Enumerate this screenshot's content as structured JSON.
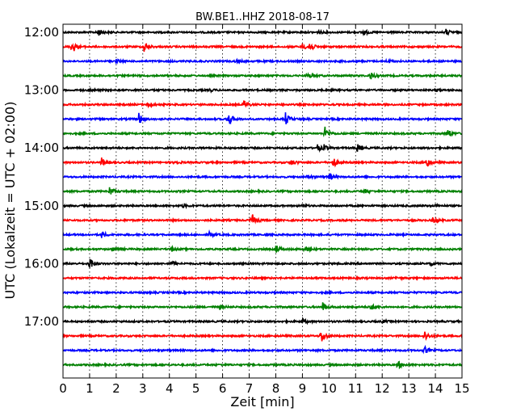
{
  "chart_data": {
    "type": "line",
    "title": "BW.BE1..HHZ 2018-08-17",
    "xlabel": "Zeit  [min]",
    "ylabel": "UTC (Lokalzeit = UTC + 02:00)",
    "xlim": [
      0,
      15
    ],
    "x_ticks": [
      "0",
      "1",
      "2",
      "3",
      "4",
      "5",
      "6",
      "7",
      "8",
      "9",
      "10",
      "11",
      "12",
      "13",
      "14",
      "15"
    ],
    "y_tick_labels": [
      "12:00",
      "13:00",
      "14:00",
      "15:00",
      "16:00",
      "17:00"
    ],
    "grid": "vertical dotted",
    "colors": [
      "#000000",
      "#ff0000",
      "#0000ff",
      "#008000"
    ],
    "traces": [
      {
        "label": "12:00",
        "events": [
          [
            1.3,
            0.6
          ],
          [
            11.3,
            0.4
          ],
          [
            14.4,
            0.4
          ],
          [
            9.6,
            0.2
          ]
        ]
      },
      {
        "label": "12:15",
        "events": [
          [
            0.35,
            0.9
          ],
          [
            3.05,
            0.8
          ],
          [
            9.25,
            0.8
          ],
          [
            9.0,
            0.4
          ]
        ]
      },
      {
        "label": "12:30",
        "events": [
          [
            2.0,
            0.2
          ],
          [
            6.5,
            0.2
          ],
          [
            12.2,
            0.2
          ]
        ]
      },
      {
        "label": "12:45",
        "events": [
          [
            9.2,
            0.4
          ],
          [
            11.55,
            0.6
          ]
        ]
      },
      {
        "label": "13:00",
        "events": [
          [
            1.0,
            0.2
          ],
          [
            5.5,
            0.2
          ],
          [
            14.0,
            0.2
          ]
        ]
      },
      {
        "label": "13:15",
        "events": [
          [
            3.2,
            0.4
          ],
          [
            6.8,
            0.6
          ]
        ]
      },
      {
        "label": "13:30",
        "events": [
          [
            2.85,
            0.8
          ],
          [
            6.2,
            1.0
          ],
          [
            8.35,
            1.0
          ]
        ]
      },
      {
        "label": "13:45",
        "events": [
          [
            9.85,
            0.9
          ],
          [
            14.45,
            0.6
          ]
        ]
      },
      {
        "label": "14:00",
        "events": [
          [
            9.55,
            0.5
          ],
          [
            9.8,
            0.4
          ],
          [
            11.05,
            0.6
          ]
        ]
      },
      {
        "label": "14:15",
        "events": [
          [
            1.45,
            0.6
          ],
          [
            4.2,
            0.3
          ],
          [
            8.55,
            0.5
          ],
          [
            10.15,
            0.8
          ],
          [
            13.65,
            0.9
          ]
        ]
      },
      {
        "label": "14:30",
        "events": [
          [
            9.2,
            0.3
          ],
          [
            10.0,
            0.5
          ]
        ]
      },
      {
        "label": "14:45",
        "events": [
          [
            1.75,
            0.6
          ],
          [
            11.3,
            0.3
          ]
        ]
      },
      {
        "label": "15:00",
        "events": [
          [
            4.5,
            0.2
          ],
          [
            9.0,
            0.2
          ],
          [
            14.0,
            0.2
          ]
        ]
      },
      {
        "label": "15:15",
        "events": [
          [
            7.1,
            0.9
          ],
          [
            13.9,
            0.4
          ]
        ]
      },
      {
        "label": "15:30",
        "events": [
          [
            1.45,
            0.5
          ],
          [
            5.5,
            0.3
          ]
        ]
      },
      {
        "label": "15:45",
        "events": [
          [
            1.9,
            0.4
          ],
          [
            4.1,
            0.3
          ],
          [
            8.0,
            0.6
          ],
          [
            9.1,
            0.4
          ]
        ]
      },
      {
        "label": "16:00",
        "events": [
          [
            1.0,
            1.0
          ],
          [
            4.1,
            0.3
          ],
          [
            13.8,
            0.3
          ]
        ]
      },
      {
        "label": "16:15",
        "events": [
          [
            12.5,
            0.2
          ]
        ]
      },
      {
        "label": "16:30",
        "events": []
      },
      {
        "label": "16:45",
        "events": [
          [
            5.9,
            0.3
          ],
          [
            9.75,
            0.7
          ],
          [
            11.55,
            0.5
          ]
        ]
      },
      {
        "label": "17:00",
        "events": [
          [
            9.0,
            0.4
          ],
          [
            12.0,
            0.2
          ]
        ]
      },
      {
        "label": "17:15",
        "events": [
          [
            9.7,
            1.0
          ],
          [
            13.6,
            0.7
          ]
        ]
      },
      {
        "label": "17:30",
        "events": [
          [
            13.6,
            0.5
          ]
        ]
      },
      {
        "label": "17:45",
        "events": [
          [
            12.6,
            0.5
          ]
        ]
      }
    ]
  }
}
